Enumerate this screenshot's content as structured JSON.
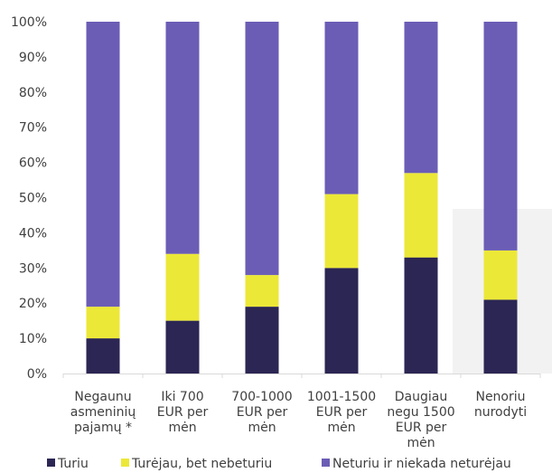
{
  "chart_data": {
    "type": "bar",
    "stacked": true,
    "percent_axis": true,
    "categories": [
      [
        "Negaunu",
        "asmeninių",
        "pajamų  *"
      ],
      [
        "Iki 700",
        "EUR per",
        "mėn"
      ],
      [
        "700-1000",
        "EUR per",
        "mėn"
      ],
      [
        "1001-1500",
        "EUR per",
        "mėn"
      ],
      [
        "Daugiau",
        "negu 1500",
        "EUR per",
        "mėn"
      ],
      [
        "Nenoriu",
        "nurodyti"
      ]
    ],
    "series": [
      {
        "name": "Turiu",
        "color": "#2b2653",
        "values": [
          10,
          15,
          19,
          30,
          33,
          21
        ]
      },
      {
        "name": "Turėjau, bet nebeturiu",
        "color": "#ece838",
        "values": [
          9,
          19,
          9,
          21,
          24,
          14
        ]
      },
      {
        "name": "Neturiu ir niekada neturėjau",
        "color": "#6b5db5",
        "values": [
          81,
          66,
          72,
          49,
          43,
          65
        ]
      }
    ],
    "y_ticks": [
      "0%",
      "10%",
      "20%",
      "30%",
      "40%",
      "50%",
      "60%",
      "70%",
      "80%",
      "90%",
      "100%"
    ],
    "ylim": [
      0,
      100
    ],
    "grid": false,
    "legend_position": "bottom"
  }
}
